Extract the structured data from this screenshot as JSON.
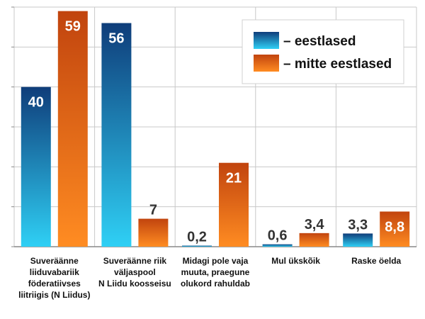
{
  "chart_data": {
    "type": "bar",
    "title": "",
    "xlabel": "",
    "ylabel": "",
    "ylim": [
      0,
      60
    ],
    "grid": true,
    "legend_position": "top-right",
    "categories": [
      [
        "Suveräänne",
        "liiduvabariik",
        "föderatiivses",
        "liitriigis (N Liidus)"
      ],
      [
        "Suveräänne riik",
        "väljaspool",
        "N Liidu koosseisu"
      ],
      [
        "Midagi pole vaja",
        "muuta, praegune",
        "olukord rahuldab"
      ],
      [
        "Mul ükskõik"
      ],
      [
        "Raske öelda"
      ]
    ],
    "series": [
      {
        "name": "– eestlased",
        "values": [
          40,
          56,
          0.2,
          0.6,
          3.3
        ],
        "labels": [
          "40",
          "56",
          "0,2",
          "0,6",
          "3,3"
        ]
      },
      {
        "name": "– mitte eestlased",
        "values": [
          59,
          7,
          21,
          3.4,
          8.8
        ],
        "labels": [
          "59",
          "7",
          "21",
          "3,4",
          "8,8"
        ]
      }
    ]
  },
  "colors": {
    "series1_top": "#0f3d7a",
    "series1_bottom": "#2fd0f5",
    "series2_top": "#c1440e",
    "series2_bottom": "#ff8c22",
    "grid": "#c8c8c8",
    "axis": "#888888"
  }
}
